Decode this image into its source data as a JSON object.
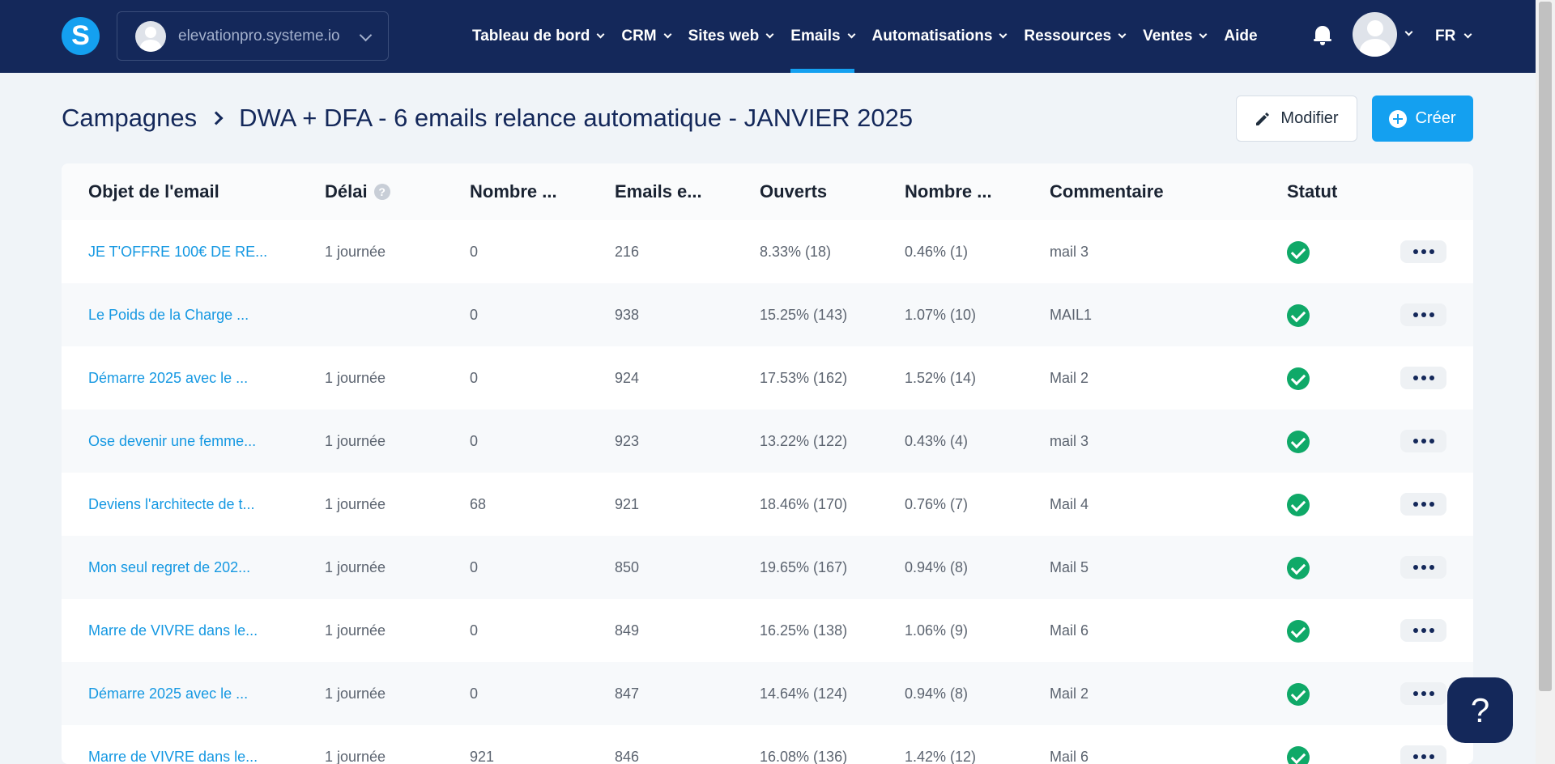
{
  "header": {
    "logo_letter": "S",
    "workspace_name": "elevationpro.systeme.io",
    "nav": [
      {
        "label": "Tableau de bord",
        "dropdown": true,
        "active": false
      },
      {
        "label": "CRM",
        "dropdown": true,
        "active": false
      },
      {
        "label": "Sites web",
        "dropdown": true,
        "active": false
      },
      {
        "label": "Emails",
        "dropdown": true,
        "active": true
      },
      {
        "label": "Automatisations",
        "dropdown": true,
        "active": false
      },
      {
        "label": "Ressources",
        "dropdown": true,
        "active": false
      },
      {
        "label": "Ventes",
        "dropdown": true,
        "active": false
      },
      {
        "label": "Aide",
        "dropdown": false,
        "active": false
      }
    ],
    "language": "FR"
  },
  "breadcrumb": {
    "root": "Campagnes",
    "current": "DWA + DFA - 6 emails relance automatique - JANVIER 2025"
  },
  "actions": {
    "modify_label": "Modifier",
    "create_label": "Créer"
  },
  "table": {
    "columns": {
      "subject": "Objet de l'email",
      "delay": "Délai",
      "count": "Nombre ...",
      "sent": "Emails e...",
      "opened": "Ouverts",
      "clicks": "Nombre ...",
      "comment": "Commentaire",
      "status": "Statut"
    },
    "delay_help_icon": "?",
    "rows": [
      {
        "subject": "JE T'OFFRE 100€ DE RE...",
        "delay": "1 journée",
        "count": "0",
        "sent": "216",
        "opened": "8.33% (18)",
        "clicks": "0.46% (1)",
        "comment": "mail 3",
        "status": "sent"
      },
      {
        "subject": "Le Poids de la Charge ...",
        "delay": "",
        "count": "0",
        "sent": "938",
        "opened": "15.25% (143)",
        "clicks": "1.07% (10)",
        "comment": "MAIL1",
        "status": "sent"
      },
      {
        "subject": "Démarre 2025 avec le ...",
        "delay": "1 journée",
        "count": "0",
        "sent": "924",
        "opened": "17.53% (162)",
        "clicks": "1.52% (14)",
        "comment": "Mail 2",
        "status": "sent"
      },
      {
        "subject": "Ose devenir une femme...",
        "delay": "1 journée",
        "count": "0",
        "sent": "923",
        "opened": "13.22% (122)",
        "clicks": "0.43% (4)",
        "comment": "mail 3",
        "status": "sent"
      },
      {
        "subject": "Deviens l'architecte de t...",
        "delay": "1 journée",
        "count": "68",
        "sent": "921",
        "opened": "18.46% (170)",
        "clicks": "0.76% (7)",
        "comment": "Mail 4",
        "status": "sent"
      },
      {
        "subject": "Mon seul regret de 202...",
        "delay": "1 journée",
        "count": "0",
        "sent": "850",
        "opened": "19.65% (167)",
        "clicks": "0.94% (8)",
        "comment": "Mail 5",
        "status": "sent"
      },
      {
        "subject": "Marre de VIVRE dans le...",
        "delay": "1 journée",
        "count": "0",
        "sent": "849",
        "opened": "16.25% (138)",
        "clicks": "1.06% (9)",
        "comment": "Mail 6",
        "status": "sent"
      },
      {
        "subject": "Démarre 2025 avec le ...",
        "delay": "1 journée",
        "count": "0",
        "sent": "847",
        "opened": "14.64% (124)",
        "clicks": "0.94% (8)",
        "comment": "Mail 2",
        "status": "sent"
      },
      {
        "subject": "Marre de VIVRE dans le...",
        "delay": "1 journée",
        "count": "921",
        "sent": "846",
        "opened": "16.08% (136)",
        "clicks": "1.42% (12)",
        "comment": "Mail 6",
        "status": "sent"
      }
    ]
  },
  "support": {
    "label": "?"
  },
  "colors": {
    "nav_bg": "#14285a",
    "accent": "#14a0f0",
    "link": "#1598e2",
    "status_ok": "#0fa968"
  }
}
